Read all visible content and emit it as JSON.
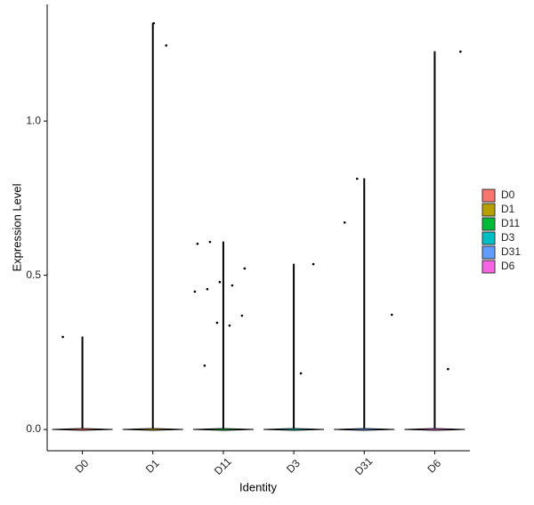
{
  "chart_data": {
    "type": "violin",
    "xlabel": "Identity",
    "ylabel": "Expression Level",
    "ylim": [
      -0.069,
      1.378
    ],
    "yticks": [
      {
        "value": 0,
        "label": "0.0"
      },
      0.5,
      {
        "value": 1,
        "label": "1.0"
      }
    ],
    "legend": "right",
    "series": [
      {
        "name": "D0",
        "color": "#F8766D",
        "values": [
          0.3
        ]
      },
      {
        "name": "D1",
        "color": "#B79F00",
        "values": [
          1.245,
          1.317
        ]
      },
      {
        "name": "D11",
        "color": "#00BA38",
        "values": [
          0.608,
          0.602,
          0.522,
          0.467,
          0.478,
          0.455,
          0.447,
          0.369,
          0.337,
          0.346,
          0.207
        ]
      },
      {
        "name": "D3",
        "color": "#00BFC4",
        "values": [
          0.536,
          0.182
        ]
      },
      {
        "name": "D31",
        "color": "#619CFF",
        "values": [
          0.813,
          0.671,
          0.372
        ]
      },
      {
        "name": "D6",
        "color": "#F564E3",
        "values": [
          1.225,
          0.196
        ]
      }
    ]
  }
}
